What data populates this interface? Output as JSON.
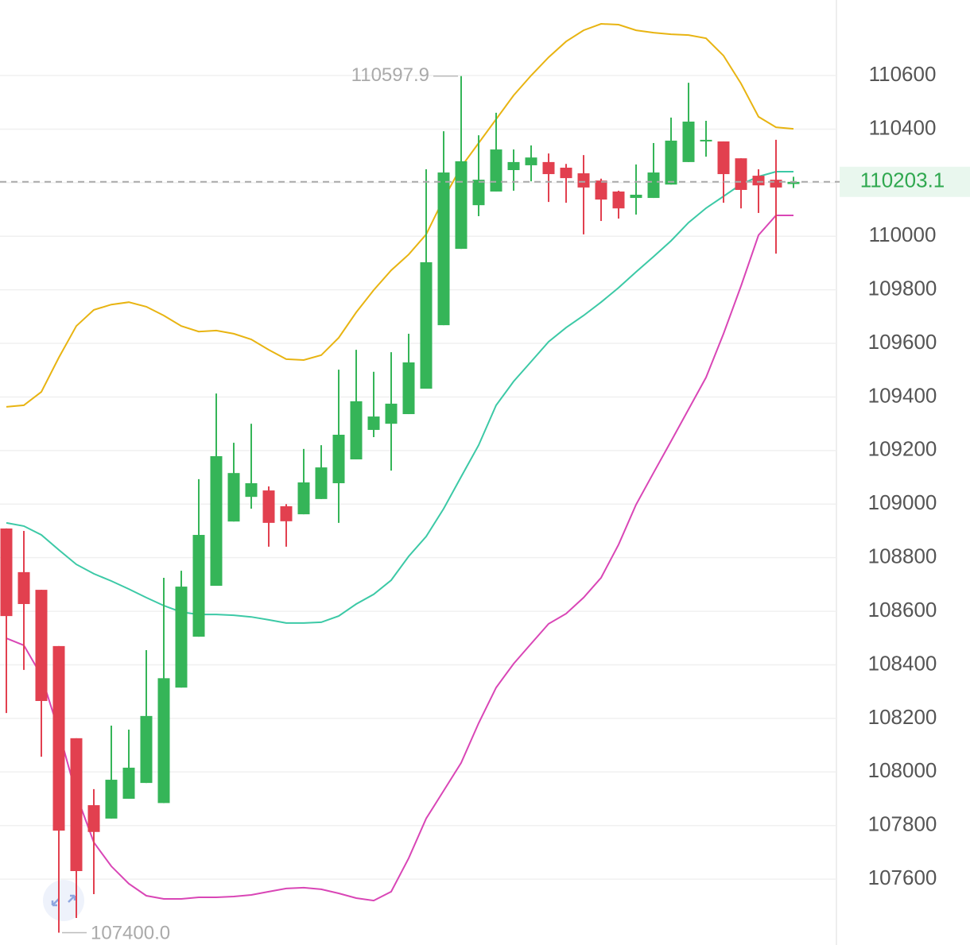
{
  "chart_data": {
    "type": "candlestick",
    "open": [
      108909,
      108746,
      108680,
      108470,
      108126,
      107876,
      107826,
      107900,
      107959,
      107884,
      108315,
      108505,
      108695,
      108935,
      109027,
      109051,
      108992,
      108962,
      109019,
      109078,
      109167,
      109277,
      109300,
      109336,
      109431,
      109668,
      109953,
      110116,
      110167,
      110247,
      110265,
      110277,
      110256,
      110235,
      110208,
      110167,
      110143,
      110143,
      110193,
      110277,
      110354,
      110354,
      110291,
      110226,
      110211,
      110195
    ],
    "high": [
      108909,
      108900,
      108680,
      108470,
      108126,
      107936,
      108173,
      108158,
      108455,
      108725,
      108751,
      109093,
      109413,
      109229,
      109300,
      109066,
      109000,
      109206,
      109220,
      109502,
      109576,
      109494,
      109567,
      109636,
      110250,
      110392,
      110597.9,
      110377,
      110461,
      110324,
      110339,
      110309,
      110270,
      110303,
      110215,
      110170,
      110268,
      110348,
      110443,
      110573,
      110431,
      110354,
      110291,
      110250,
      110360,
      110222
    ],
    "low": [
      108220,
      108381,
      108057,
      107400,
      107455,
      107544,
      107826,
      107900,
      107959,
      107884,
      108315,
      108505,
      108695,
      108935,
      108983,
      108841,
      108841,
      108962,
      109019,
      108930,
      109167,
      109250,
      109125,
      109336,
      109431,
      109668,
      109953,
      110075,
      110167,
      110170,
      110205,
      110128,
      110125,
      110007,
      110057,
      110066,
      110081,
      110143,
      110193,
      110277,
      110297,
      110125,
      110104,
      110087,
      109935,
      110180
    ],
    "close": [
      108582,
      108627,
      108265,
      107781,
      107630,
      107776,
      107971,
      108016,
      108209,
      108350,
      108692,
      108885,
      109179,
      109116,
      109078,
      108930,
      108936,
      109081,
      109137,
      109259,
      109384,
      109327,
      109375,
      109529,
      109903,
      110238,
      110280,
      110211,
      110324,
      110277,
      110294,
      110232,
      110217,
      110182,
      110137,
      110104,
      110155,
      110238,
      110357,
      110428,
      110360,
      110232,
      110173,
      110190,
      110182,
      110203.1
    ],
    "up_color": "#35b558",
    "down_color": "#e2404f",
    "bands": [
      {
        "color": "#e8b412",
        "values": [
          109363,
          109369,
          109419,
          109547,
          109665,
          109725,
          109745,
          109754,
          109737,
          109704,
          109665,
          109644,
          109648,
          109636,
          109615,
          109576,
          109541,
          109538,
          109556,
          109621,
          109716,
          109799,
          109873,
          109932,
          110007,
          110140,
          110259,
          110348,
          110437,
          110526,
          110600,
          110668,
          110727,
          110769,
          110793,
          110790,
          110769,
          110760,
          110754,
          110751,
          110739,
          110674,
          110570,
          110446,
          110407,
          110401
        ]
      },
      {
        "color": "#3cc9a6",
        "values": [
          108930,
          108918,
          108885,
          108829,
          108775,
          108740,
          108713,
          108683,
          108651,
          108621,
          108597,
          108588,
          108588,
          108585,
          108579,
          108568,
          108556,
          108556,
          108559,
          108582,
          108627,
          108663,
          108716,
          108805,
          108879,
          108983,
          109102,
          109220,
          109369,
          109458,
          109532,
          109606,
          109659,
          109704,
          109754,
          109808,
          109867,
          109924,
          109983,
          110051,
          110105,
          110149,
          110194,
          110223,
          110241,
          110241
        ]
      },
      {
        "color": "#d946b6",
        "values": [
          108499,
          108473,
          108360,
          108152,
          107915,
          107737,
          107648,
          107583,
          107538,
          107526,
          107526,
          107532,
          107532,
          107535,
          107541,
          107553,
          107565,
          107568,
          107562,
          107547,
          107529,
          107520,
          107553,
          107678,
          107826,
          107930,
          108034,
          108182,
          108315,
          108404,
          108479,
          108553,
          108591,
          108651,
          108725,
          108849,
          108998,
          109117,
          109235,
          109354,
          109473,
          109636,
          109814,
          110004,
          110078,
          110078
        ]
      }
    ],
    "ylim": [
      107354,
      110882
    ],
    "yticks": [
      107600,
      107800,
      108000,
      108200,
      108400,
      108600,
      108800,
      109000,
      109200,
      109400,
      109600,
      109800,
      110000,
      110200,
      110400,
      110600
    ],
    "grid": true,
    "last_price": 110203.1,
    "high_annotation": 110597.9,
    "low_annotation": {
      "value": 107400,
      "label": "107400.0"
    }
  }
}
